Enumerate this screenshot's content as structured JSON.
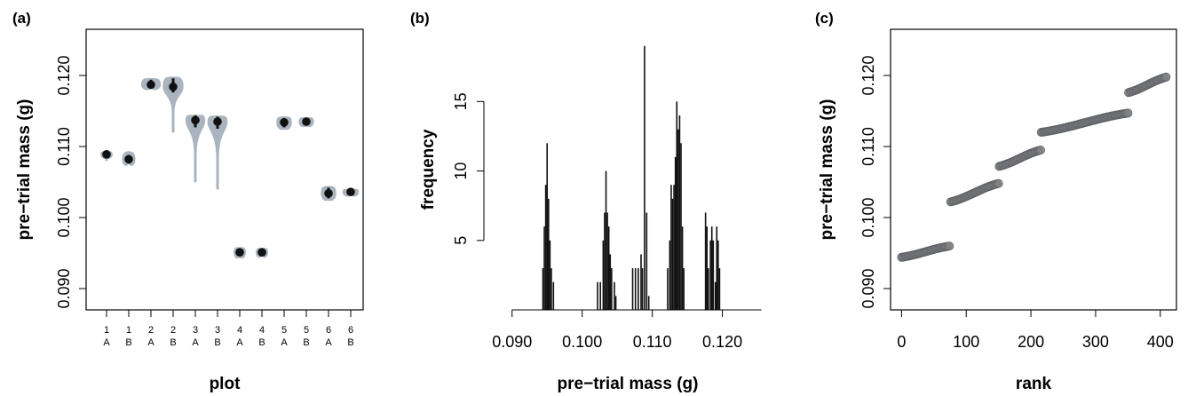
{
  "colors": {
    "violin_fill": "#aab4bf",
    "point": "#111111",
    "bar": "#111111",
    "rank_marker": "#7f8184",
    "rank_edge": "#606265"
  },
  "chart_data": [
    {
      "id": "a",
      "panel_label": "(a)",
      "type": "violin",
      "xlabel": "plot",
      "ylabel": "pre−trial mass (g)",
      "ylim": [
        0.087,
        0.1265
      ],
      "yticks": [
        "0.090",
        "0.100",
        "0.110",
        "0.120"
      ],
      "categories": [
        {
          "plot": "1",
          "sub": "A",
          "median": 0.1089,
          "q1": 0.1087,
          "q3": 0.1091,
          "min": 0.108,
          "max": 0.1093,
          "halfwidth": 0.55
        },
        {
          "plot": "1",
          "sub": "B",
          "median": 0.1082,
          "q1": 0.1076,
          "q3": 0.1088,
          "min": 0.1075,
          "max": 0.1093,
          "halfwidth": 0.6
        },
        {
          "plot": "2",
          "sub": "A",
          "median": 0.1187,
          "q1": 0.1183,
          "q3": 0.1194,
          "min": 0.1181,
          "max": 0.1196,
          "halfwidth": 0.9
        },
        {
          "plot": "2",
          "sub": "B",
          "median": 0.1184,
          "q1": 0.1176,
          "q3": 0.1196,
          "min": 0.112,
          "max": 0.1198,
          "halfwidth": 0.95
        },
        {
          "plot": "3",
          "sub": "A",
          "median": 0.1137,
          "q1": 0.1127,
          "q3": 0.1144,
          "min": 0.105,
          "max": 0.1144,
          "halfwidth": 0.9
        },
        {
          "plot": "3",
          "sub": "B",
          "median": 0.1135,
          "q1": 0.1125,
          "q3": 0.1142,
          "min": 0.104,
          "max": 0.1143,
          "halfwidth": 0.92
        },
        {
          "plot": "4",
          "sub": "A",
          "median": 0.0951,
          "q1": 0.0946,
          "q3": 0.0956,
          "min": 0.0943,
          "max": 0.0958,
          "halfwidth": 0.55
        },
        {
          "plot": "4",
          "sub": "B",
          "median": 0.0951,
          "q1": 0.0947,
          "q3": 0.0955,
          "min": 0.0945,
          "max": 0.0957,
          "halfwidth": 0.55
        },
        {
          "plot": "5",
          "sub": "A",
          "median": 0.1134,
          "q1": 0.1127,
          "q3": 0.114,
          "min": 0.1124,
          "max": 0.1142,
          "halfwidth": 0.7
        },
        {
          "plot": "5",
          "sub": "B",
          "median": 0.1135,
          "q1": 0.1131,
          "q3": 0.1139,
          "min": 0.1128,
          "max": 0.1141,
          "halfwidth": 0.7
        },
        {
          "plot": "6",
          "sub": "A",
          "median": 0.1034,
          "q1": 0.1027,
          "q3": 0.1042,
          "min": 0.1024,
          "max": 0.1044,
          "halfwidth": 0.7
        },
        {
          "plot": "6",
          "sub": "B",
          "median": 0.1036,
          "q1": 0.1033,
          "q3": 0.1039,
          "min": 0.1032,
          "max": 0.104,
          "halfwidth": 0.75
        }
      ]
    },
    {
      "id": "b",
      "panel_label": "(b)",
      "type": "bar",
      "xlabel": "pre−trial mass (g)",
      "ylabel": "frequency",
      "xlim": [
        0.0875,
        0.1255
      ],
      "ylim": [
        0,
        20.2
      ],
      "xticks": [
        "0.090",
        "0.100",
        "0.110",
        "0.120"
      ],
      "yticks": [
        "5",
        "10",
        "15"
      ],
      "bins": [
        {
          "x": 0.0944,
          "y": 3
        },
        {
          "x": 0.0946,
          "y": 6
        },
        {
          "x": 0.0948,
          "y": 9
        },
        {
          "x": 0.095,
          "y": 12
        },
        {
          "x": 0.0952,
          "y": 8
        },
        {
          "x": 0.0954,
          "y": 5
        },
        {
          "x": 0.0956,
          "y": 3
        },
        {
          "x": 0.0959,
          "y": 2
        },
        {
          "x": 0.1022,
          "y": 2
        },
        {
          "x": 0.1026,
          "y": 2
        },
        {
          "x": 0.103,
          "y": 5
        },
        {
          "x": 0.1032,
          "y": 7
        },
        {
          "x": 0.1034,
          "y": 10
        },
        {
          "x": 0.1036,
          "y": 7
        },
        {
          "x": 0.1038,
          "y": 6
        },
        {
          "x": 0.104,
          "y": 4
        },
        {
          "x": 0.1042,
          "y": 3
        },
        {
          "x": 0.1046,
          "y": 2
        },
        {
          "x": 0.1048,
          "y": 1
        },
        {
          "x": 0.1072,
          "y": 3
        },
        {
          "x": 0.1076,
          "y": 3
        },
        {
          "x": 0.108,
          "y": 3
        },
        {
          "x": 0.1084,
          "y": 4
        },
        {
          "x": 0.1086,
          "y": 3
        },
        {
          "x": 0.1089,
          "y": 19
        },
        {
          "x": 0.1092,
          "y": 7
        },
        {
          "x": 0.1095,
          "y": 1
        },
        {
          "x": 0.1122,
          "y": 3
        },
        {
          "x": 0.1125,
          "y": 5
        },
        {
          "x": 0.1127,
          "y": 9
        },
        {
          "x": 0.1129,
          "y": 8
        },
        {
          "x": 0.1131,
          "y": 9
        },
        {
          "x": 0.1133,
          "y": 11
        },
        {
          "x": 0.1135,
          "y": 15
        },
        {
          "x": 0.1137,
          "y": 13
        },
        {
          "x": 0.1139,
          "y": 14
        },
        {
          "x": 0.1141,
          "y": 12
        },
        {
          "x": 0.1143,
          "y": 6
        },
        {
          "x": 0.1145,
          "y": 3
        },
        {
          "x": 0.1176,
          "y": 7
        },
        {
          "x": 0.1178,
          "y": 6
        },
        {
          "x": 0.118,
          "y": 3
        },
        {
          "x": 0.1183,
          "y": 5
        },
        {
          "x": 0.1185,
          "y": 6
        },
        {
          "x": 0.1187,
          "y": 5
        },
        {
          "x": 0.119,
          "y": 2
        },
        {
          "x": 0.1192,
          "y": 6
        },
        {
          "x": 0.1194,
          "y": 5
        },
        {
          "x": 0.1196,
          "y": 3
        }
      ]
    },
    {
      "id": "c",
      "panel_label": "(c)",
      "type": "scatter",
      "xlabel": "rank",
      "ylabel": "pre−trial mass (g)",
      "xlim": [
        -17,
        425
      ],
      "ylim": [
        0.087,
        0.1265
      ],
      "xticks": [
        "0",
        "100",
        "200",
        "300",
        "400"
      ],
      "yticks": [
        "0.090",
        "0.100",
        "0.110",
        "0.120"
      ],
      "segments": [
        {
          "rank_start": 0,
          "rank_end": 75,
          "mass_start": 0.0944,
          "mass_end": 0.096
        },
        {
          "rank_start": 76,
          "rank_end": 150,
          "mass_start": 0.1022,
          "mass_end": 0.1048
        },
        {
          "rank_start": 151,
          "rank_end": 215,
          "mass_start": 0.1072,
          "mass_end": 0.1095
        },
        {
          "rank_start": 216,
          "rank_end": 350,
          "mass_start": 0.112,
          "mass_end": 0.1147
        },
        {
          "rank_start": 351,
          "rank_end": 410,
          "mass_start": 0.1176,
          "mass_end": 0.1198
        }
      ]
    }
  ]
}
